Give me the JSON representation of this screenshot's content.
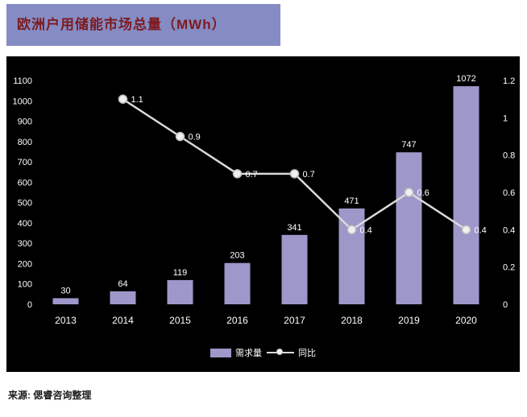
{
  "header": {
    "title": "欧洲户用储能市场总量（MWh）"
  },
  "source": {
    "label": "来源: 偲睿咨询整理"
  },
  "chart_data": {
    "type": "bar",
    "subtype": "bar+line combo, dual axis",
    "title": "欧洲户用储能市场总量（MWh）",
    "categories": [
      "2013",
      "2014",
      "2015",
      "2016",
      "2017",
      "2018",
      "2019",
      "2020"
    ],
    "series": [
      {
        "name": "需求量",
        "type": "bar",
        "axis": "left",
        "color": "#9d98c9",
        "values": [
          30,
          64,
          119,
          203,
          341,
          471,
          747,
          1072
        ]
      },
      {
        "name": "同比",
        "type": "line",
        "axis": "right",
        "color": "#d9d9d9",
        "marker_fill": "#f0f0f0",
        "marker_stroke": "#bfbfbf",
        "values": [
          null,
          1.1,
          0.9,
          0.7,
          0.7,
          0.4,
          0.6,
          0.4
        ]
      }
    ],
    "left_axis": {
      "min": 0,
      "max": 1100,
      "step": 100
    },
    "right_axis": {
      "min": 0,
      "max": 1.2,
      "step": 0.2
    },
    "grid": false,
    "legend_position": "bottom",
    "plot_background": "#000000",
    "label_color": "#ffffff"
  },
  "colors": {
    "banner": "#858cc4",
    "title_text": "#7c1a1f",
    "bar": "#9d98c9",
    "line": "#d9d9d9",
    "chart_background": "#000000",
    "page_background": "#ffffff"
  }
}
